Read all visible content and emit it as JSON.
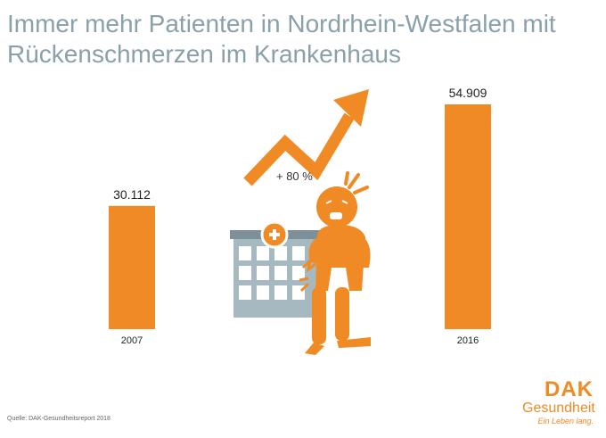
{
  "title_line1": "Immer mehr Patienten in Nordrhein-Westfalen mit",
  "title_line2": "Rückenschmerzen im Krankenhaus",
  "source": "Quelle: DAK-Gesundheitsreport 2018",
  "growth_label": "+  80 %",
  "logo": {
    "name": "DAK",
    "sub": "Gesundheit",
    "slogan": "Ein Leben lang."
  },
  "colors": {
    "bar": "#f08a24",
    "title": "#8aa0aa",
    "building": "#8aa0aa"
  },
  "chart_data": {
    "type": "bar",
    "categories": [
      "2007",
      "2016"
    ],
    "values": [
      30112,
      54909
    ],
    "value_labels": [
      "30.112",
      "54.909"
    ],
    "title": "Immer mehr Patienten in Nordrhein-Westfalen mit Rückenschmerzen im Krankenhaus",
    "xlabel": "",
    "ylabel": "",
    "ylim": [
      0,
      54909
    ],
    "grid": false,
    "legend": "none"
  }
}
